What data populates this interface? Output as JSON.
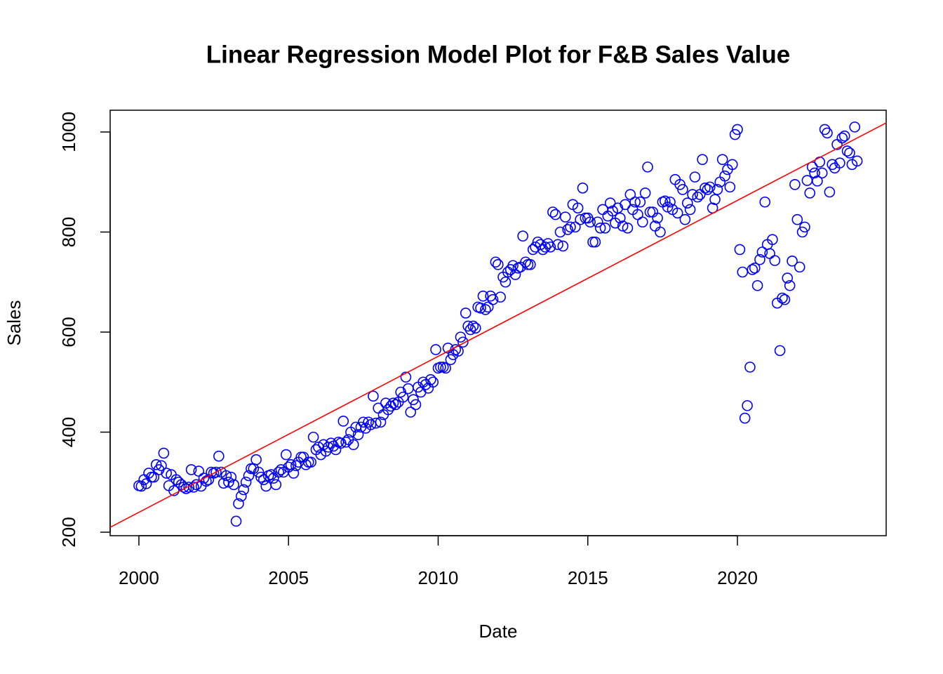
{
  "chart_data": {
    "type": "scatter",
    "title": "Linear Regression Model Plot for F&B Sales Value",
    "x_label": "Date",
    "y_label": "Sales",
    "xlim": [
      1999.04,
      2024.97
    ],
    "ylim": [
      193,
      1043.5
    ],
    "xticks": [
      2000,
      2005,
      2010,
      2015,
      2020
    ],
    "yticks": [
      200,
      400,
      600,
      800,
      1000
    ],
    "series": [
      {
        "color": "#0000ff",
        "x": [
          2000,
          2000.08,
          2000.17,
          2000.25,
          2000.33,
          2000.42,
          2000.5,
          2000.58,
          2000.67,
          2000.75,
          2000.83,
          2000.92,
          2001,
          2001.08,
          2001.17,
          2001.25,
          2001.33,
          2001.42,
          2001.5,
          2001.58,
          2001.67,
          2001.75,
          2001.83,
          2001.92,
          2002,
          2002.08,
          2002.17,
          2002.25,
          2002.33,
          2002.42,
          2002.5,
          2002.58,
          2002.67,
          2002.75,
          2002.83,
          2002.92,
          2003,
          2003.08,
          2003.17,
          2003.25,
          2003.33,
          2003.42,
          2003.5,
          2003.58,
          2003.67,
          2003.75,
          2003.83,
          2003.92,
          2004,
          2004.08,
          2004.17,
          2004.25,
          2004.33,
          2004.42,
          2004.5,
          2004.58,
          2004.67,
          2004.75,
          2004.83,
          2004.92,
          2005,
          2005.08,
          2005.17,
          2005.25,
          2005.33,
          2005.42,
          2005.5,
          2005.58,
          2005.67,
          2005.75,
          2005.83,
          2005.92,
          2006,
          2006.08,
          2006.17,
          2006.25,
          2006.33,
          2006.42,
          2006.5,
          2006.58,
          2006.67,
          2006.75,
          2006.83,
          2006.92,
          2007,
          2007.08,
          2007.17,
          2007.25,
          2007.33,
          2007.42,
          2007.5,
          2007.58,
          2007.67,
          2007.75,
          2007.83,
          2007.92,
          2008,
          2008.08,
          2008.17,
          2008.25,
          2008.33,
          2008.42,
          2008.5,
          2008.58,
          2008.67,
          2008.75,
          2008.83,
          2008.92,
          2009,
          2009.08,
          2009.17,
          2009.25,
          2009.33,
          2009.42,
          2009.5,
          2009.58,
          2009.67,
          2009.75,
          2009.83,
          2009.92,
          2010,
          2010.08,
          2010.17,
          2010.25,
          2010.33,
          2010.42,
          2010.5,
          2010.58,
          2010.67,
          2010.75,
          2010.83,
          2010.92,
          2011,
          2011.08,
          2011.17,
          2011.25,
          2011.33,
          2011.42,
          2011.5,
          2011.58,
          2011.67,
          2011.75,
          2011.83,
          2011.92,
          2012,
          2012.08,
          2012.17,
          2012.25,
          2012.33,
          2012.42,
          2012.5,
          2012.58,
          2012.67,
          2012.75,
          2012.83,
          2012.92,
          2013,
          2013.08,
          2013.17,
          2013.25,
          2013.33,
          2013.42,
          2013.5,
          2013.58,
          2013.67,
          2013.75,
          2013.83,
          2013.92,
          2014,
          2014.08,
          2014.17,
          2014.25,
          2014.33,
          2014.42,
          2014.5,
          2014.58,
          2014.67,
          2014.75,
          2014.83,
          2014.92,
          2015,
          2015.08,
          2015.17,
          2015.25,
          2015.33,
          2015.42,
          2015.5,
          2015.58,
          2015.67,
          2015.75,
          2015.83,
          2015.92,
          2016,
          2016.08,
          2016.17,
          2016.25,
          2016.33,
          2016.42,
          2016.5,
          2016.58,
          2016.67,
          2016.75,
          2016.83,
          2016.92,
          2017,
          2017.08,
          2017.17,
          2017.25,
          2017.33,
          2017.42,
          2017.5,
          2017.58,
          2017.67,
          2017.75,
          2017.83,
          2017.92,
          2018,
          2018.08,
          2018.17,
          2018.25,
          2018.33,
          2018.42,
          2018.5,
          2018.58,
          2018.67,
          2018.75,
          2018.83,
          2018.92,
          2019,
          2019.08,
          2019.17,
          2019.25,
          2019.33,
          2019.42,
          2019.5,
          2019.58,
          2019.67,
          2019.75,
          2019.83,
          2019.92,
          2020,
          2020.08,
          2020.17,
          2020.25,
          2020.33,
          2020.42,
          2020.5,
          2020.58,
          2020.67,
          2020.75,
          2020.83,
          2020.92,
          2021,
          2021.08,
          2021.17,
          2021.25,
          2021.33,
          2021.42,
          2021.5,
          2021.58,
          2021.67,
          2021.75,
          2021.83,
          2021.92,
          2022,
          2022.08,
          2022.17,
          2022.25,
          2022.33,
          2022.42,
          2022.5,
          2022.58,
          2022.67,
          2022.75,
          2022.83,
          2022.92,
          2023,
          2023.08,
          2023.17,
          2023.25,
          2023.33,
          2023.42,
          2023.5,
          2023.58,
          2023.67,
          2023.75,
          2023.83,
          2023.92,
          2024
        ],
        "values": [
          293,
          292,
          305,
          297,
          318,
          310,
          310,
          335,
          325,
          333,
          358,
          318,
          293,
          315,
          283,
          305,
          300,
          295,
          290,
          287,
          290,
          325,
          290,
          295,
          322,
          292,
          308,
          302,
          305,
          320,
          318,
          320,
          352,
          320,
          298,
          313,
          300,
          310,
          295,
          222,
          257,
          272,
          285,
          300,
          313,
          327,
          327,
          345,
          320,
          310,
          305,
          292,
          313,
          315,
          308,
          295,
          320,
          325,
          320,
          355,
          330,
          335,
          318,
          333,
          340,
          350,
          350,
          335,
          340,
          340,
          390,
          365,
          370,
          355,
          375,
          362,
          370,
          378,
          372,
          365,
          380,
          378,
          422,
          380,
          385,
          400,
          375,
          410,
          395,
          410,
          420,
          408,
          420,
          415,
          472,
          418,
          448,
          420,
          435,
          458,
          445,
          452,
          458,
          455,
          460,
          480,
          470,
          510,
          487,
          440,
          465,
          455,
          490,
          480,
          500,
          495,
          488,
          505,
          500,
          565,
          528,
          530,
          530,
          528,
          568,
          545,
          555,
          565,
          562,
          590,
          580,
          638,
          612,
          605,
          612,
          608,
          650,
          648,
          672,
          645,
          650,
          672,
          665,
          740,
          735,
          670,
          710,
          700,
          720,
          725,
          733,
          715,
          728,
          730,
          792,
          740,
          735,
          735,
          765,
          770,
          780,
          775,
          765,
          770,
          777,
          770,
          840,
          835,
          775,
          800,
          772,
          830,
          805,
          810,
          855,
          810,
          848,
          825,
          888,
          828,
          828,
          820,
          780,
          780,
          820,
          808,
          845,
          808,
          832,
          858,
          842,
          818,
          848,
          828,
          812,
          855,
          808,
          875,
          845,
          860,
          835,
          860,
          820,
          878,
          930,
          840,
          840,
          812,
          828,
          800,
          860,
          862,
          850,
          860,
          845,
          905,
          838,
          895,
          885,
          825,
          858,
          845,
          875,
          910,
          870,
          875,
          945,
          888,
          885,
          890,
          848,
          865,
          885,
          900,
          945,
          912,
          925,
          890,
          935,
          995,
          1005,
          765,
          720,
          428,
          453,
          530,
          725,
          728,
          693,
          745,
          760,
          860,
          775,
          757,
          785,
          743,
          658,
          563,
          668,
          665,
          708,
          693,
          742,
          895,
          825,
          730,
          800,
          810,
          903,
          878,
          930,
          918,
          902,
          940,
          918,
          1005,
          998,
          880,
          935,
          928,
          975,
          938,
          988,
          992,
          962,
          958,
          935,
          1010,
          942
        ]
      }
    ],
    "regression": {
      "color": "#ff0000",
      "x": [
        1999.04,
        2024.97
      ],
      "y": [
        209.8,
        1018.2
      ]
    }
  }
}
